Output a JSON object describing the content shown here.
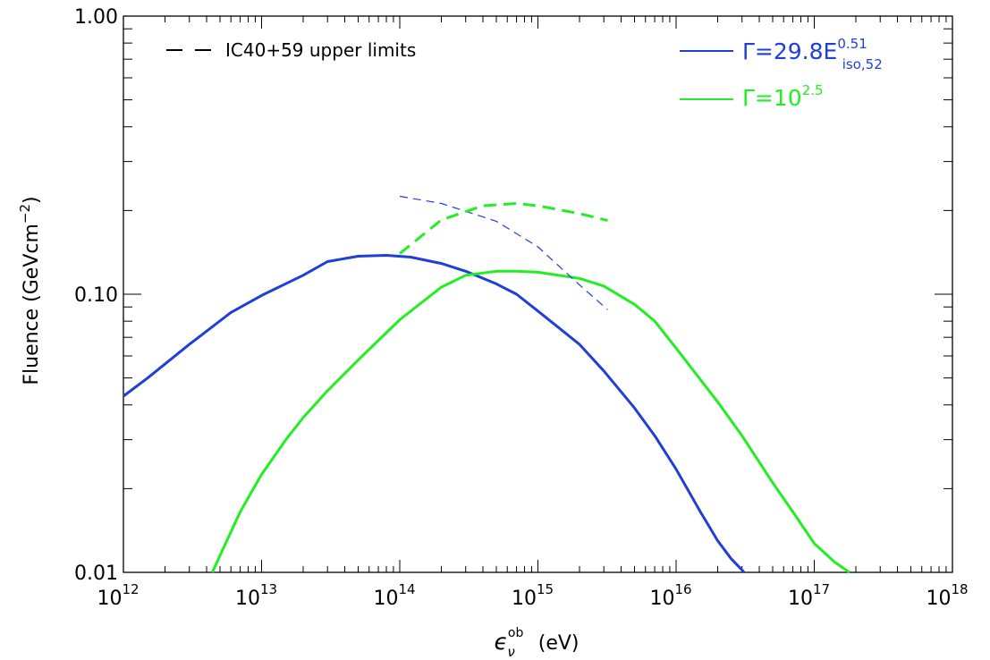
{
  "chart_data": {
    "type": "line",
    "x_scale": "log",
    "y_scale": "log",
    "xlim": [
      1000000000000.0,
      1e+18
    ],
    "ylim": [
      0.01,
      1.0
    ],
    "xlabel": "ε_ν^ob  (eV)",
    "xlabel_parts": {
      "main": "ϵ",
      "sub": "ν",
      "sup": "ob",
      "unit": "(eV)"
    },
    "ylabel": "Fluence (GeVcm⁻²)",
    "ylabel_parts": {
      "main": "Fluence (GeVcm",
      "sup": "−2",
      "close": ")"
    },
    "x_ticks": [
      {
        "value": 1000000000000.0,
        "base": "10",
        "exp": "12"
      },
      {
        "value": 10000000000000.0,
        "base": "10",
        "exp": "13"
      },
      {
        "value": 100000000000000.0,
        "base": "10",
        "exp": "14"
      },
      {
        "value": 1000000000000000.0,
        "base": "10",
        "exp": "15"
      },
      {
        "value": 1e+16,
        "base": "10",
        "exp": "16"
      },
      {
        "value": 1e+17,
        "base": "10",
        "exp": "17"
      },
      {
        "value": 1e+18,
        "base": "10",
        "exp": "18"
      }
    ],
    "y_ticks": [
      {
        "value": 0.01,
        "label": "0.01"
      },
      {
        "value": 0.1,
        "label": "0.10"
      },
      {
        "value": 1.0,
        "label": "1.00"
      }
    ],
    "legend_placement": "top",
    "legend": {
      "upper_limits": {
        "label": "IC40+59 upper limits",
        "color": "#000000",
        "style": "dashed"
      },
      "series": [
        {
          "key": "blue",
          "color": "#1f3fd6",
          "text_main": "Γ=29.8E",
          "sup": "0.51",
          "sub": "iso,52"
        },
        {
          "key": "green",
          "color": "#22ee22",
          "text_main": "Γ=10",
          "sup": "2.5",
          "sub": ""
        }
      ]
    },
    "series": [
      {
        "key": "blue",
        "kind": "spectrum",
        "color": "#1f3fd6",
        "style": "solid",
        "width": 3,
        "x": [
          1000000000000.0,
          1500000000000.0,
          3000000000000.0,
          6000000000000.0,
          10000000000000.0,
          20000000000000.0,
          30000000000000.0,
          50000000000000.0,
          80000000000000.0,
          120000000000000.0,
          200000000000000.0,
          300000000000000.0,
          500000000000000.0,
          700000000000000.0,
          1000000000000000.0,
          2000000000000000.0,
          3000000000000000.0,
          5000000000000000.0,
          7000000000000000.0,
          1e+16,
          1.5e+16,
          2e+16,
          2.5e+16,
          3e+16,
          3.1e+16
        ],
        "y": [
          0.043,
          0.05,
          0.066,
          0.086,
          0.099,
          0.117,
          0.131,
          0.137,
          0.138,
          0.136,
          0.129,
          0.121,
          0.109,
          0.1,
          0.087,
          0.066,
          0.053,
          0.039,
          0.031,
          0.0235,
          0.0165,
          0.013,
          0.0112,
          0.0102,
          0.01
        ]
      },
      {
        "key": "green",
        "kind": "spectrum",
        "color": "#22ee22",
        "style": "solid",
        "width": 3,
        "x": [
          4400000000000.0,
          5000000000000.0,
          7000000000000.0,
          10000000000000.0,
          15000000000000.0,
          20000000000000.0,
          30000000000000.0,
          50000000000000.0,
          100000000000000.0,
          200000000000000.0,
          300000000000000.0,
          500000000000000.0,
          700000000000000.0,
          1000000000000000.0,
          2000000000000000.0,
          3000000000000000.0,
          5000000000000000.0,
          7000000000000000.0,
          1e+16,
          2e+16,
          3e+16,
          5e+16,
          7e+16,
          1e+17,
          1.4e+17,
          1.8e+17
        ],
        "y": [
          0.01,
          0.0115,
          0.0165,
          0.0225,
          0.03,
          0.036,
          0.045,
          0.058,
          0.081,
          0.106,
          0.117,
          0.121,
          0.121,
          0.12,
          0.114,
          0.107,
          0.092,
          0.08,
          0.064,
          0.041,
          0.031,
          0.021,
          0.0165,
          0.0127,
          0.0109,
          0.01
        ]
      },
      {
        "key": "blue",
        "kind": "upper_limit",
        "color": "#1f3fd6",
        "style": "dashed",
        "width": 1.2,
        "x": [
          100000000000000.0,
          200000000000000.0,
          500000000000000.0,
          1000000000000000.0,
          2000000000000000.0,
          3200000000000000.0
        ],
        "y": [
          0.225,
          0.212,
          0.183,
          0.148,
          0.108,
          0.088
        ]
      },
      {
        "key": "green",
        "kind": "upper_limit",
        "color": "#22ee22",
        "style": "dashed",
        "width": 3,
        "x": [
          100000000000000.0,
          200000000000000.0,
          400000000000000.0,
          700000000000000.0,
          1000000000000000.0,
          2000000000000000.0,
          3200000000000000.0
        ],
        "y": [
          0.14,
          0.185,
          0.208,
          0.212,
          0.208,
          0.195,
          0.184
        ]
      }
    ]
  }
}
